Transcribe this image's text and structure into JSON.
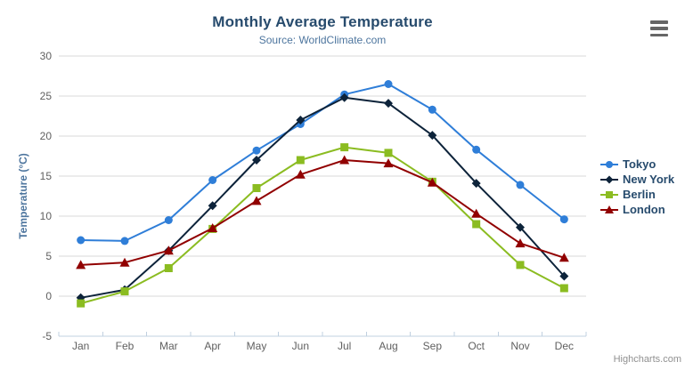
{
  "header": {
    "title": "Monthly Average Temperature",
    "subtitle": "Source: WorldClimate.com"
  },
  "credits": {
    "text": "Highcharts.com"
  },
  "icons": {
    "context_menu": "hamburger-icon"
  },
  "colors": {
    "title": "#274b6d",
    "subtitle": "#4d759e",
    "axis_title": "#4d759e",
    "axis_labels": "#606060",
    "legend_text": "#274b6d",
    "grid_line": "#d8d8d8",
    "axis_line": "#c0d0e0",
    "credits_text": "#909090",
    "menu_icon": "#666666",
    "background": "#ffffff"
  },
  "chart_data": {
    "type": "line",
    "title": "Monthly Average Temperature",
    "subtitle": "Source: WorldClimate.com",
    "xlabel": "",
    "ylabel": "Temperature (°C)",
    "categories": [
      "Jan",
      "Feb",
      "Mar",
      "Apr",
      "May",
      "Jun",
      "Jul",
      "Aug",
      "Sep",
      "Oct",
      "Nov",
      "Dec"
    ],
    "yticks": [
      -5,
      0,
      5,
      10,
      15,
      20,
      25,
      30
    ],
    "ylim": [
      -5,
      30
    ],
    "grid": true,
    "legend_position": "right",
    "series": [
      {
        "name": "Tokyo",
        "color": "#2f7ed8",
        "marker": "circle",
        "values": [
          7.0,
          6.9,
          9.5,
          14.5,
          18.2,
          21.5,
          25.2,
          26.5,
          23.3,
          18.3,
          13.9,
          9.6
        ]
      },
      {
        "name": "New York",
        "color": "#0d233a",
        "marker": "diamond",
        "values": [
          -0.2,
          0.8,
          5.7,
          11.3,
          17.0,
          22.0,
          24.8,
          24.1,
          20.1,
          14.1,
          8.6,
          2.5
        ]
      },
      {
        "name": "Berlin",
        "color": "#8bbc21",
        "marker": "square",
        "values": [
          -0.9,
          0.6,
          3.5,
          8.4,
          13.5,
          17.0,
          18.6,
          17.9,
          14.3,
          9.0,
          3.9,
          1.0
        ]
      },
      {
        "name": "London",
        "color": "#910000",
        "marker": "triangle",
        "values": [
          3.9,
          4.2,
          5.7,
          8.5,
          11.9,
          15.2,
          17.0,
          16.6,
          14.2,
          10.3,
          6.6,
          4.8
        ]
      }
    ]
  }
}
